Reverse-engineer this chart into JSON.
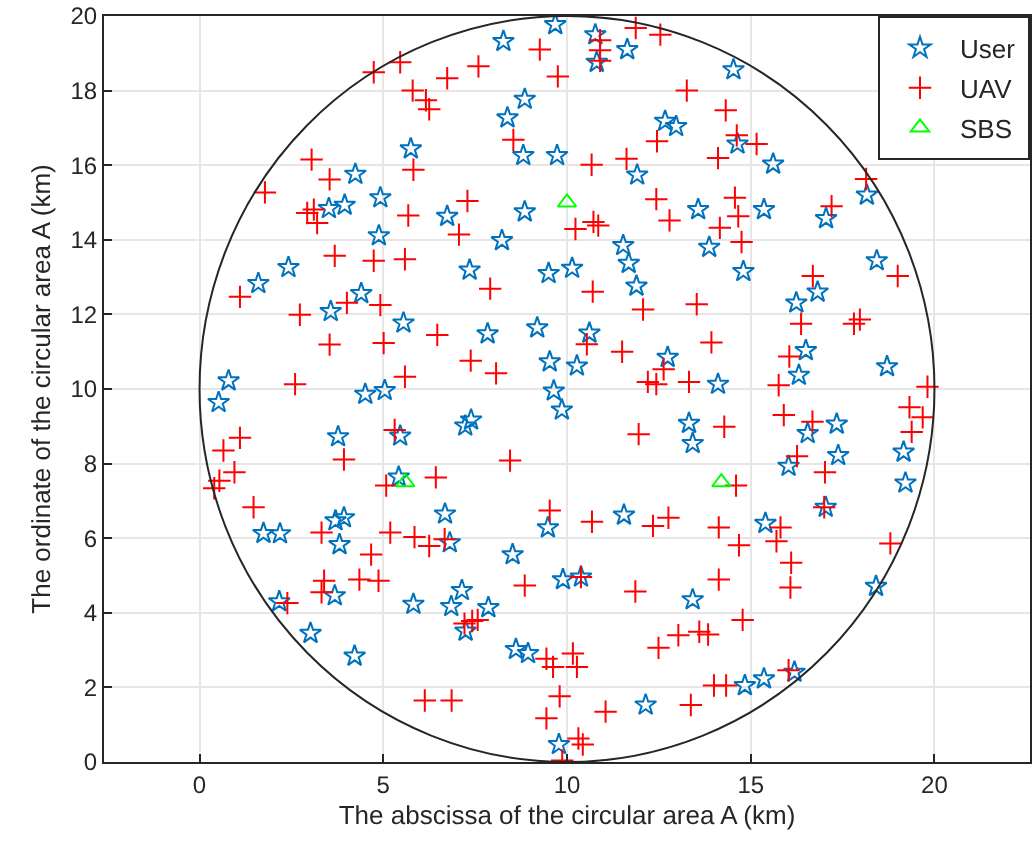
{
  "chart_data": {
    "type": "scatter",
    "xlabel": "The abscissa of the circular area A (km)",
    "ylabel": "The ordinate of the circular area A (km)",
    "xlim": [
      -2.6,
      22.6
    ],
    "ylim": [
      0,
      20
    ],
    "xticks": [
      0,
      5,
      10,
      15,
      20
    ],
    "yticks": [
      0,
      2,
      4,
      6,
      8,
      10,
      12,
      14,
      16,
      18,
      20
    ],
    "grid": true,
    "legend": "top right",
    "series": [
      {
        "name": "User",
        "marker": "star",
        "color": "#0072bd",
        "x": [
          4.24,
          3.52,
          3.95,
          4.92,
          4.88,
          2.42,
          1.6,
          4.4,
          3.57,
          5.55,
          0.79,
          5.75,
          9.68,
          8.27,
          10.77,
          10.81,
          11.64,
          8.85,
          8.38,
          8.81,
          9.73,
          12.67,
          12.97,
          11.91,
          6.74,
          8.85,
          13.57,
          8.23,
          11.53,
          13.87,
          7.35,
          9.5,
          10.14,
          11.68,
          11.89,
          7.84,
          9.19,
          10.61,
          12.74,
          9.53,
          10.27,
          14.11,
          14.53,
          14.64,
          15.61,
          15.36,
          17.05,
          18.16,
          14.8,
          18.43,
          16.24,
          16.82,
          16.5,
          16.31,
          18.71,
          0.52,
          4.51,
          5.04,
          3.77,
          5.46,
          5.42,
          3.7,
          3.93,
          1.74,
          2.19,
          3.81,
          2.17,
          3.68,
          3.02,
          4.22,
          5.82,
          9.64,
          9.86,
          7.23,
          7.39,
          13.32,
          13.42,
          6.68,
          9.48,
          11.55,
          6.81,
          8.52,
          9.89,
          10.38,
          7.14,
          6.85,
          7.86,
          7.24,
          8.61,
          8.94,
          13.42,
          12.14,
          9.78,
          17.34,
          16.55,
          17.38,
          16.03,
          19.16,
          19.21,
          15.4,
          17.04,
          18.41,
          14.84,
          15.36,
          16.19
        ],
        "values": [
          15.76,
          14.84,
          14.93,
          15.13,
          14.11,
          13.26,
          12.83,
          12.56,
          12.08,
          11.77,
          10.22,
          16.44,
          19.77,
          19.32,
          19.5,
          18.76,
          19.1,
          17.77,
          17.27,
          16.26,
          16.26,
          17.18,
          17.04,
          15.74,
          14.63,
          14.75,
          14.81,
          13.98,
          13.85,
          13.8,
          13.19,
          13.1,
          13.24,
          13.37,
          12.76,
          11.48,
          11.64,
          11.5,
          10.85,
          10.73,
          10.62,
          10.13,
          18.56,
          16.57,
          16.03,
          14.81,
          14.57,
          15.2,
          13.15,
          13.44,
          12.31,
          12.6,
          11.03,
          10.37,
          10.6,
          9.64,
          9.86,
          9.96,
          8.72,
          8.74,
          7.64,
          6.47,
          6.55,
          6.13,
          6.12,
          5.83,
          4.3,
          4.46,
          3.45,
          2.84,
          4.23,
          9.95,
          9.44,
          9.01,
          9.17,
          9.08,
          8.54,
          6.65,
          6.28,
          6.62,
          5.88,
          5.56,
          4.89,
          4.96,
          4.6,
          4.17,
          4.14,
          3.51,
          3.02,
          2.91,
          4.35,
          1.53,
          0.47,
          9.06,
          8.81,
          8.22,
          7.93,
          8.31,
          7.48,
          6.4,
          6.83,
          4.71,
          2.05,
          2.23,
          2.41
        ]
      },
      {
        "name": "UAV",
        "marker": "cross",
        "color": "#ff0000",
        "x": [
          4.74,
          5.46,
          5.8,
          3.05,
          3.54,
          1.78,
          2.93,
          3.11,
          3.2,
          5.68,
          3.68,
          4.74,
          5.59,
          1.1,
          2.73,
          4.01,
          4.92,
          3.54,
          5.01,
          5.59,
          2.6,
          5.82,
          11.87,
          12.54,
          10.9,
          10.9,
          10.9,
          9.26,
          7.59,
          6.74,
          9.75,
          6.16,
          6.25,
          13.26,
          8.54,
          12.45,
          14.11,
          10.67,
          11.62,
          7.29,
          12.43,
          7.06,
          10.23,
          10.72,
          10.85,
          12.79,
          14.16,
          7.91,
          10.7,
          12.07,
          13.53,
          6.47,
          7.38,
          8.07,
          10.54,
          11.5,
          13.93,
          12.63,
          12.2,
          12.43,
          13.32,
          14.32,
          14.62,
          15.16,
          14.57,
          14.66,
          14.75,
          17.2,
          18.14,
          19.0,
          16.69,
          16.37,
          17.81,
          17.97,
          16.05,
          15.76,
          19.81,
          1.1,
          0.65,
          0.95,
          0.54,
          0.4,
          1.47,
          3.93,
          5.31,
          5.08,
          5.19,
          3.32,
          4.67,
          3.39,
          3.32,
          4.35,
          4.87,
          2.39,
          11.95,
          8.45,
          6.43,
          9.53,
          10.68,
          12.34,
          12.76,
          14.13,
          5.85,
          6.25,
          6.67,
          8.85,
          10.38,
          11.86,
          14.13,
          7.21,
          7.42,
          7.57,
          9.44,
          9.62,
          10.16,
          10.27,
          12.49,
          13.03,
          13.6,
          13.84,
          9.8,
          9.44,
          11.05,
          6.13,
          6.86,
          10.31,
          10.43,
          9.87,
          13.37,
          14.0,
          14.33,
          19.32,
          19.68,
          19.38,
          14.28,
          15.9,
          16.68,
          16.26,
          17.02,
          14.6,
          17.0,
          14.68,
          15.81,
          15.7,
          16.1,
          16.08,
          18.8,
          14.78,
          16.03
        ],
        "values": [
          18.49,
          18.76,
          18.0,
          16.15,
          15.62,
          15.27,
          14.72,
          14.81,
          14.45,
          14.65,
          13.57,
          13.44,
          13.48,
          12.47,
          11.99,
          12.31,
          12.25,
          11.19,
          11.23,
          10.33,
          10.13,
          15.88,
          19.68,
          19.5,
          19.35,
          19.08,
          18.8,
          19.1,
          18.65,
          18.33,
          18.38,
          17.74,
          17.5,
          18.0,
          16.68,
          16.64,
          16.19,
          16.01,
          16.17,
          15.04,
          15.09,
          14.14,
          14.29,
          14.48,
          14.38,
          14.52,
          14.32,
          12.69,
          12.61,
          12.13,
          12.27,
          11.45,
          10.76,
          10.42,
          11.2,
          11.0,
          11.25,
          10.53,
          10.19,
          10.13,
          10.19,
          17.47,
          16.8,
          16.57,
          15.13,
          14.63,
          13.94,
          14.9,
          15.63,
          13.03,
          13.03,
          11.75,
          11.75,
          11.86,
          10.87,
          10.1,
          10.06,
          8.69,
          8.35,
          7.77,
          7.54,
          7.34,
          6.83,
          8.11,
          8.9,
          7.41,
          6.15,
          6.15,
          5.56,
          4.86,
          4.55,
          4.89,
          4.86,
          4.26,
          8.79,
          8.08,
          7.63,
          6.74,
          6.44,
          6.33,
          6.55,
          6.29,
          6.03,
          5.79,
          5.97,
          4.73,
          4.96,
          4.57,
          4.89,
          3.71,
          3.78,
          3.81,
          2.77,
          2.55,
          2.91,
          2.55,
          3.06,
          3.4,
          3.49,
          3.42,
          1.76,
          1.17,
          1.35,
          1.65,
          1.65,
          0.63,
          0.47,
          0.04,
          1.53,
          2.05,
          2.05,
          9.51,
          9.24,
          8.85,
          8.99,
          9.3,
          9.12,
          8.2,
          7.77,
          7.41,
          6.83,
          5.81,
          6.29,
          5.92,
          5.34,
          4.68,
          5.86,
          3.81,
          2.46
        ]
      },
      {
        "name": "SBS",
        "marker": "triangle",
        "color": "#00ff00",
        "x": [
          10,
          5.6,
          14.2
        ],
        "values": [
          15,
          7.5,
          7.5
        ]
      }
    ]
  }
}
